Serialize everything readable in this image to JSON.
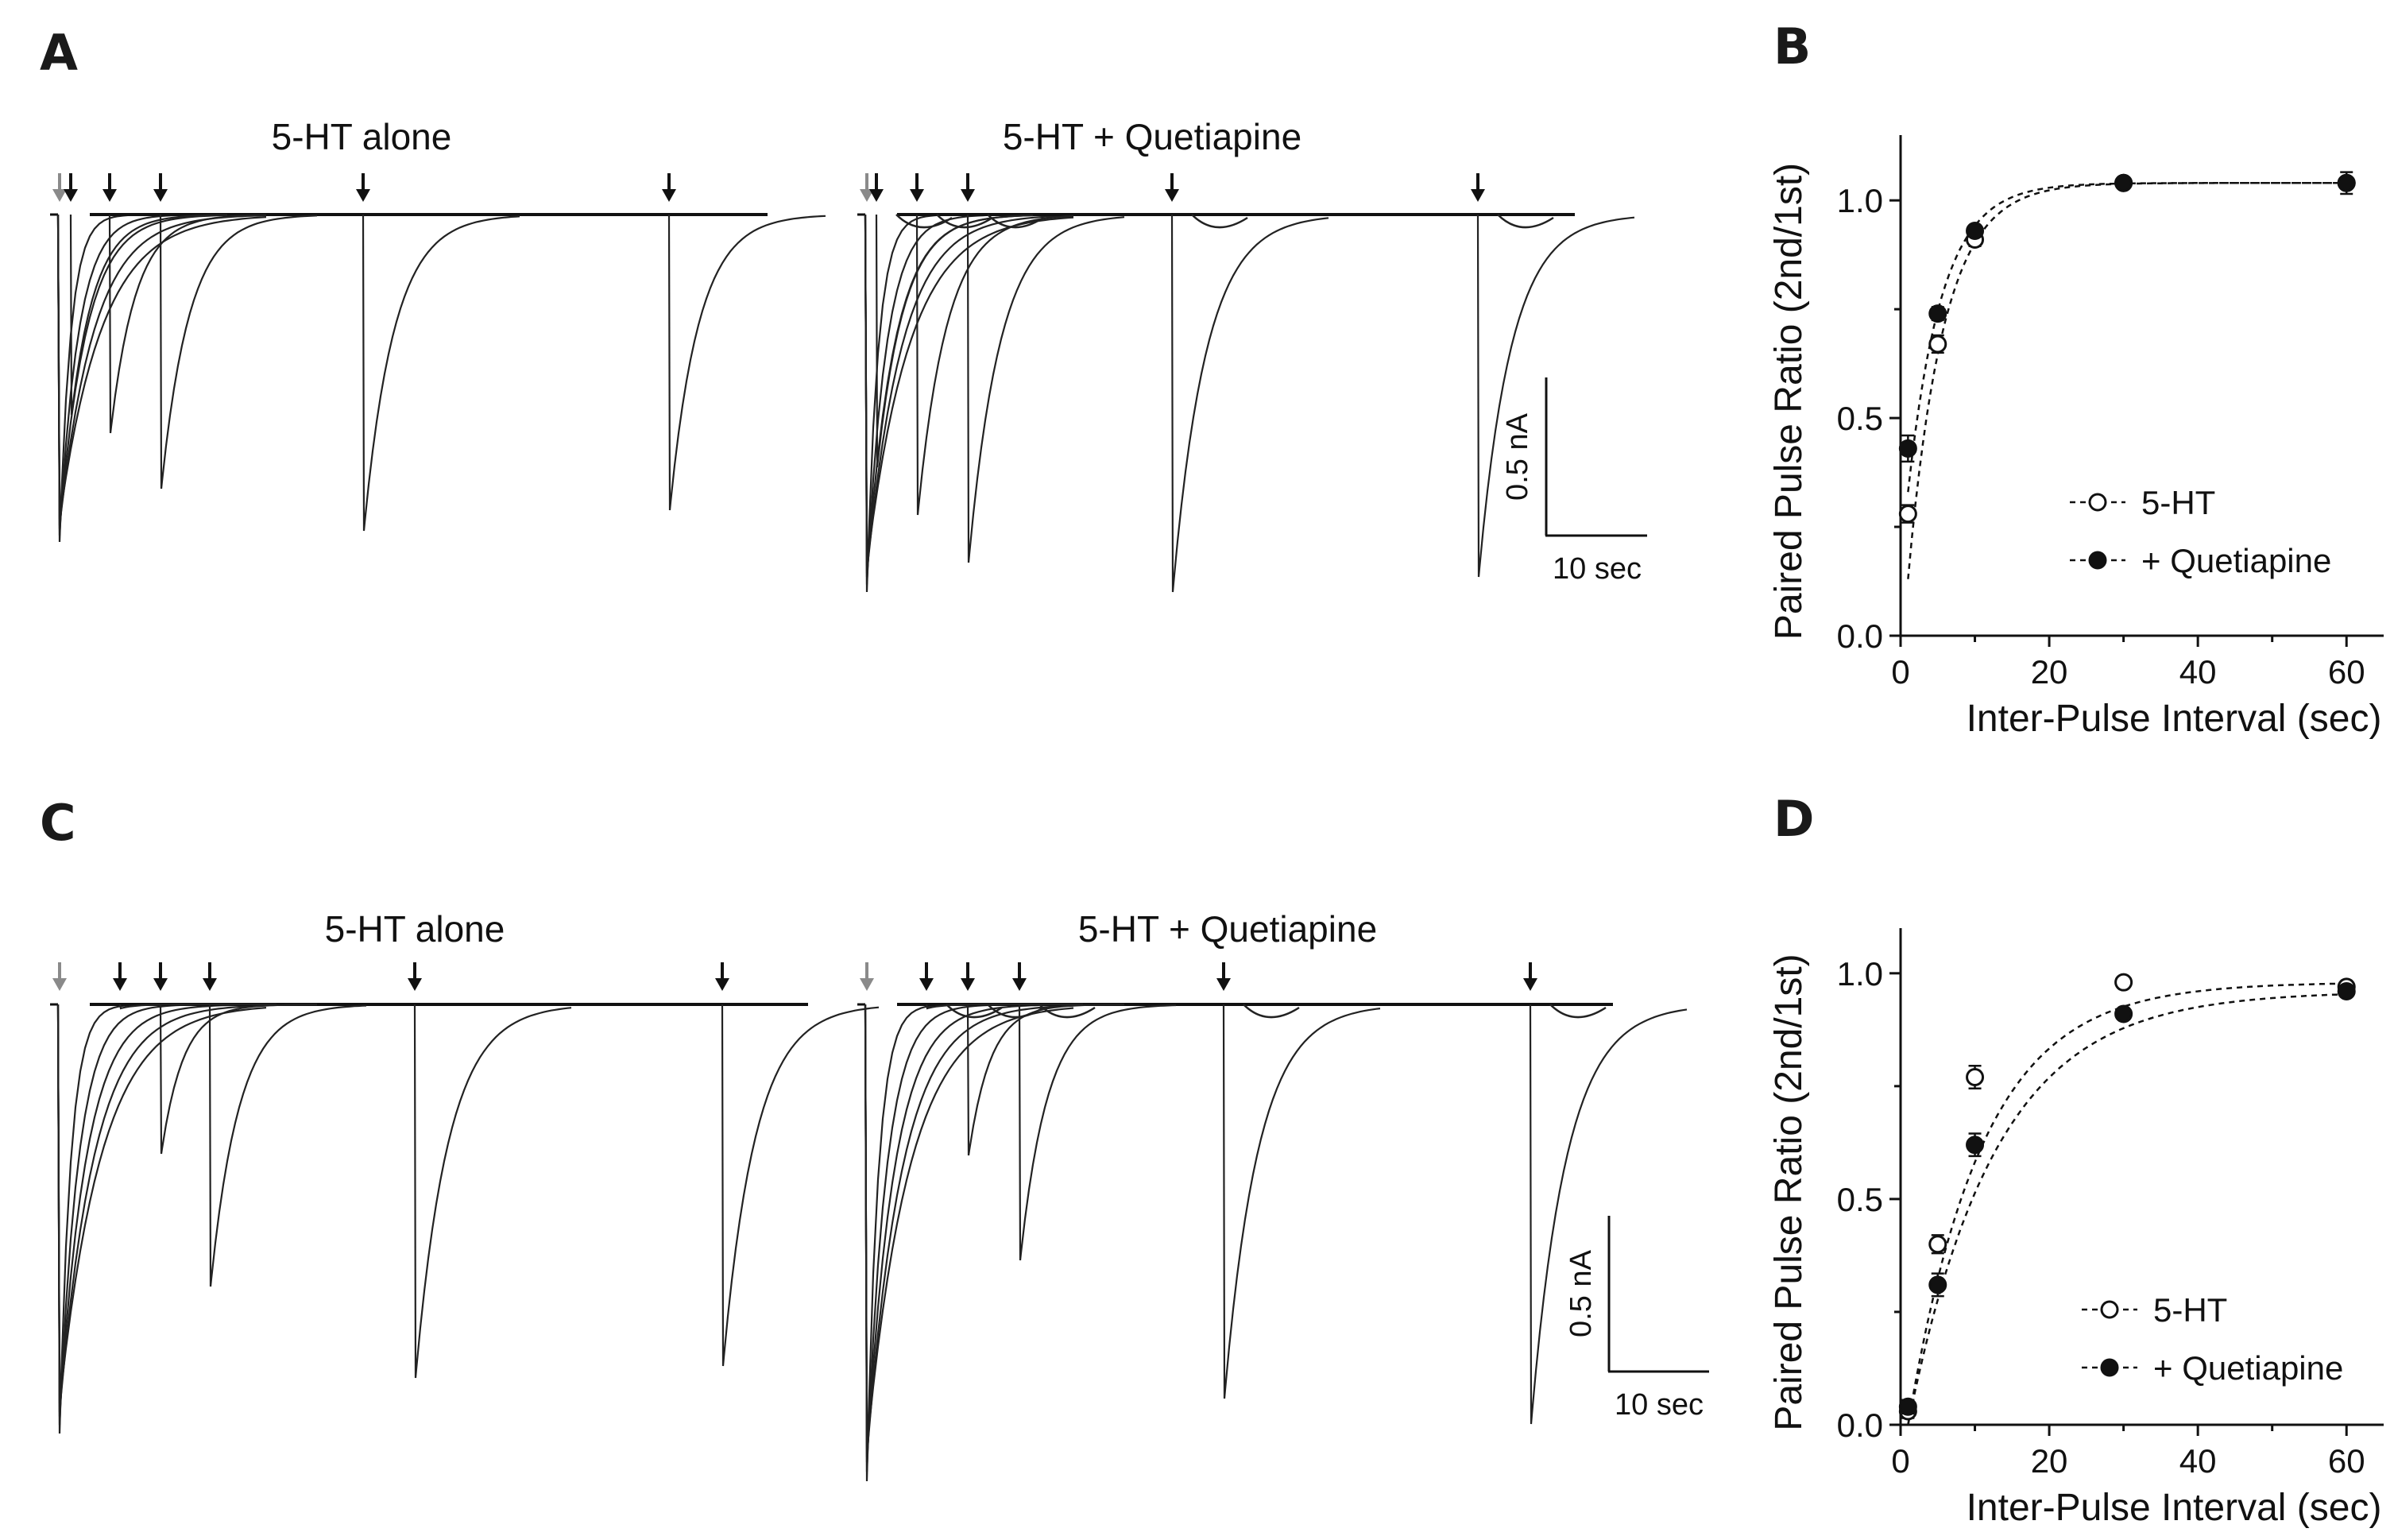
{
  "panel_labels": {
    "a": "A",
    "b": "B",
    "c": "C",
    "d": "D"
  },
  "traces": {
    "a_left_title": "5-HT alone",
    "a_right_title": "5-HT + Quetiapine",
    "c_left_title": "5-HT alone",
    "c_right_title": "5-HT + Quetiapine",
    "scale_amp": "0.5 nA",
    "scale_time": "10 sec",
    "first_arrow_color": "#8a8a8a",
    "arrow_color": "#111111"
  },
  "chart_data": [
    {
      "panel": "B",
      "type": "scatter",
      "xlabel": "Inter-Pulse Interval (sec)",
      "ylabel": "Paired Pulse Ratio (2nd/1st)",
      "xlim": [
        0,
        65
      ],
      "ylim": [
        0,
        1.15
      ],
      "xticks": [
        "0",
        "20",
        "40",
        "60"
      ],
      "yticks": [
        "0.0",
        "0.5",
        "1.0"
      ],
      "grid": false,
      "legend": "bottom-right",
      "x": [
        1,
        5,
        10,
        30,
        60
      ],
      "series": [
        {
          "name": "5-HT",
          "marker": "open-circle",
          "values": [
            0.28,
            0.67,
            0.91,
            1.04,
            1.04
          ],
          "errors": [
            0.02,
            0.02,
            0.015,
            0.01,
            0.025
          ],
          "fit_k": 0.2,
          "fit_start": 0.13
        },
        {
          "name": "+ Quetiapine",
          "marker": "filled-circle",
          "values": [
            0.43,
            0.74,
            0.93,
            1.04,
            1.04
          ],
          "errors": [
            0.03,
            0.015,
            0.01,
            0.01,
            0.01
          ],
          "fit_k": 0.22,
          "fit_start": 0.33
        }
      ]
    },
    {
      "panel": "D",
      "type": "scatter",
      "xlabel": "Inter-Pulse Interval (sec)",
      "ylabel": "Paired Pulse Ratio (2nd/1st)",
      "xlim": [
        0,
        65
      ],
      "ylim": [
        0,
        1.1
      ],
      "xticks": [
        "0",
        "20",
        "40",
        "60"
      ],
      "yticks": [
        "0.0",
        "0.5",
        "1.0"
      ],
      "grid": false,
      "legend": "bottom-right",
      "x": [
        1,
        5,
        10,
        30,
        60
      ],
      "series": [
        {
          "name": "5-HT",
          "marker": "open-circle",
          "values": [
            0.03,
            0.4,
            0.77,
            0.98,
            0.97
          ],
          "errors": [
            0.015,
            0.02,
            0.025,
            0.01,
            0.01
          ],
          "fit_k": 0.1,
          "fit_start": 0.0
        },
        {
          "name": "+ Quetiapine",
          "marker": "filled-circle",
          "values": [
            0.04,
            0.31,
            0.62,
            0.91,
            0.96
          ],
          "errors": [
            0.015,
            0.025,
            0.025,
            0.01,
            0.01
          ],
          "fit_k": 0.085,
          "fit_start": 0.0
        }
      ]
    }
  ]
}
